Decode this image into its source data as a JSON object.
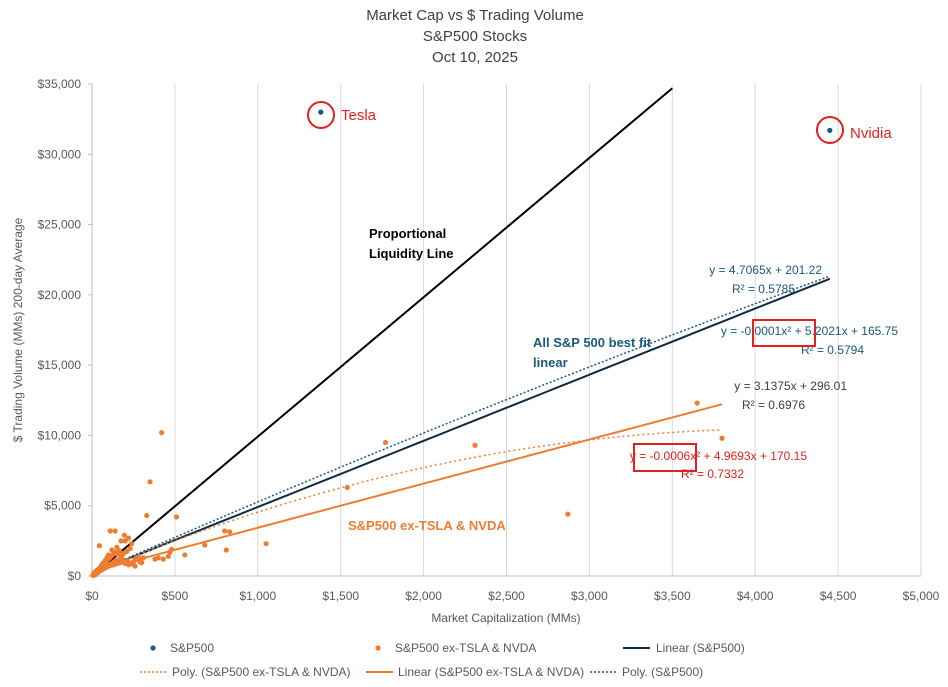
{
  "chart_data": {
    "type": "scatter",
    "title": "Market Cap vs $ Trading Volume",
    "subtitle_1": "S&P500 Stocks",
    "subtitle_2": "Oct 10, 2025",
    "xlabel": "Market Capitalization (MMs)",
    "ylabel": "$ Trading Volume (MMs) 200-day Average",
    "xlim": [
      0,
      5000
    ],
    "ylim": [
      0,
      35000
    ],
    "x_ticks": [
      0,
      500,
      1000,
      1500,
      2000,
      2500,
      3000,
      3500,
      4000,
      4500,
      5000
    ],
    "x_tick_labels": [
      "$0",
      "$500",
      "$1,000",
      "$1,500",
      "$2,000",
      "$2,500",
      "$3,000",
      "$3,500",
      "$4,000",
      "$4,500",
      "$5,000"
    ],
    "y_ticks": [
      0,
      5000,
      10000,
      15000,
      20000,
      25000,
      30000,
      35000
    ],
    "y_tick_labels": [
      "$0",
      "$5,000",
      "$10,000",
      "$15,000",
      "$20,000",
      "$25,000",
      "$30,000",
      "$35,000"
    ],
    "grid": "vertical",
    "colors": {
      "sp500": "#1a5a7a",
      "ex": "#ed7d31",
      "proportional": "#000000",
      "linear_sp500": "#0f2a44",
      "red": "#e32020",
      "eq_gray": "#404040"
    },
    "series": [
      {
        "name": "S&P500",
        "points": [
          [
            1380,
            33000
          ],
          [
            4450,
            31700
          ]
        ]
      },
      {
        "name": "S&P500 ex-TSLA & NVDA",
        "points": [
          [
            420,
            10200
          ],
          [
            350,
            6700
          ],
          [
            1770,
            9500
          ],
          [
            2310,
            9300
          ],
          [
            3650,
            12300
          ],
          [
            3800,
            9800
          ],
          [
            1540,
            6300
          ],
          [
            2870,
            4400
          ],
          [
            1050,
            2300
          ],
          [
            830,
            3150
          ],
          [
            800,
            3200
          ],
          [
            810,
            1850
          ],
          [
            680,
            2200
          ],
          [
            510,
            4200
          ],
          [
            470,
            1700
          ],
          [
            430,
            1200
          ],
          [
            330,
            4300
          ],
          [
            310,
            1300
          ],
          [
            260,
            1150
          ],
          [
            230,
            1950
          ],
          [
            240,
            2300
          ],
          [
            220,
            2700
          ],
          [
            200,
            2500
          ],
          [
            195,
            2900
          ],
          [
            175,
            2500
          ],
          [
            150,
            2050
          ],
          [
            140,
            3200
          ],
          [
            110,
            3200
          ],
          [
            45,
            2150
          ],
          [
            120,
            1850
          ],
          [
            100,
            1500
          ],
          [
            90,
            1300
          ],
          [
            80,
            1100
          ],
          [
            70,
            950
          ],
          [
            60,
            800
          ],
          [
            55,
            700
          ],
          [
            50,
            600
          ],
          [
            40,
            500
          ],
          [
            30,
            400
          ],
          [
            20,
            300
          ],
          [
            15,
            200
          ],
          [
            10,
            100
          ],
          [
            25,
            150
          ],
          [
            35,
            350
          ],
          [
            45,
            450
          ],
          [
            65,
            650
          ],
          [
            75,
            900
          ],
          [
            85,
            1000
          ],
          [
            95,
            1200
          ],
          [
            105,
            1250
          ],
          [
            115,
            1400
          ],
          [
            125,
            1500
          ],
          [
            135,
            1650
          ],
          [
            145,
            1700
          ],
          [
            155,
            1550
          ],
          [
            165,
            1800
          ],
          [
            170,
            1450
          ],
          [
            180,
            1300
          ],
          [
            190,
            1600
          ],
          [
            210,
            1750
          ],
          [
            215,
            1100
          ],
          [
            250,
            1000
          ],
          [
            270,
            1200
          ],
          [
            280,
            1350
          ],
          [
            290,
            1000
          ],
          [
            300,
            950
          ],
          [
            380,
            1200
          ],
          [
            400,
            1300
          ],
          [
            460,
            1400
          ],
          [
            480,
            1900
          ],
          [
            560,
            1500
          ],
          [
            5,
            50
          ],
          [
            12,
            120
          ],
          [
            18,
            80
          ],
          [
            28,
            220
          ],
          [
            38,
            260
          ],
          [
            48,
            380
          ],
          [
            58,
            420
          ],
          [
            68,
            520
          ],
          [
            78,
            560
          ],
          [
            88,
            640
          ],
          [
            98,
            700
          ],
          [
            108,
            820
          ],
          [
            118,
            880
          ],
          [
            128,
            950
          ],
          [
            138,
            1050
          ],
          [
            148,
            1150
          ],
          [
            160,
            1100
          ],
          [
            185,
            1000
          ],
          [
            200,
            900
          ],
          [
            220,
            800
          ],
          [
            240,
            850
          ],
          [
            260,
            700
          ],
          [
            150,
            900
          ],
          [
            130,
            800
          ],
          [
            110,
            750
          ],
          [
            90,
            650
          ],
          [
            70,
            550
          ],
          [
            50,
            420
          ],
          [
            30,
            300
          ],
          [
            22,
            260
          ],
          [
            8,
            60
          ]
        ]
      }
    ],
    "trendlines": [
      {
        "name": "Linear (S&P500)",
        "kind": "linear",
        "a": 0,
        "b": 4.7065,
        "c": 201.22,
        "x_range": [
          0,
          4450
        ]
      },
      {
        "name": "Poly. (S&P500 ex-TSLA & NVDA)",
        "kind": "poly2",
        "a": -0.0006,
        "b": 4.9693,
        "c": 170.15,
        "x_range": [
          0,
          3800
        ]
      },
      {
        "name": "Linear (S&P500 ex-TSLA & NVDA)",
        "kind": "linear",
        "a": 0,
        "b": 3.1375,
        "c": 296.01,
        "x_range": [
          0,
          3800
        ]
      },
      {
        "name": "Poly. (S&P500)",
        "kind": "poly2",
        "a": -0.0001,
        "b": 5.2021,
        "c": 165.75,
        "x_range": [
          0,
          4450
        ]
      }
    ],
    "proportional_line": {
      "points": [
        [
          0,
          0
        ],
        [
          3500,
          34700
        ]
      ]
    },
    "annotations": {
      "tesla": "Tesla",
      "nvidia": "Nvidia",
      "proportional_1": "Proportional",
      "proportional_2": "Liquidity Line",
      "all_sp_1": "All S&P 500 best fit",
      "all_sp_2": "linear",
      "ex_label": "S&P500 ex-TSLA & NVDA"
    },
    "equations": {
      "sp_linear_eq": "y = 4.7065x + 201.22",
      "sp_linear_r2": "R² = 0.5785",
      "sp_poly_eq": "y = -0.0001x² + 5.2021x + 165.75",
      "sp_poly_r2": "R² = 0.5794",
      "ex_linear_eq": "y = 3.1375x + 296.01",
      "ex_linear_r2": "R² = 0.6976",
      "ex_poly_eq": "y = -0.0006x² + 4.9693x + 170.15",
      "ex_poly_r2": "R² = 0.7332"
    },
    "legend": [
      "S&P500",
      "S&P500 ex-TSLA & NVDA",
      "Linear (S&P500)",
      "Poly. (S&P500 ex-TSLA & NVDA)",
      "Linear (S&P500 ex-TSLA & NVDA)",
      "Poly. (S&P500)"
    ]
  }
}
